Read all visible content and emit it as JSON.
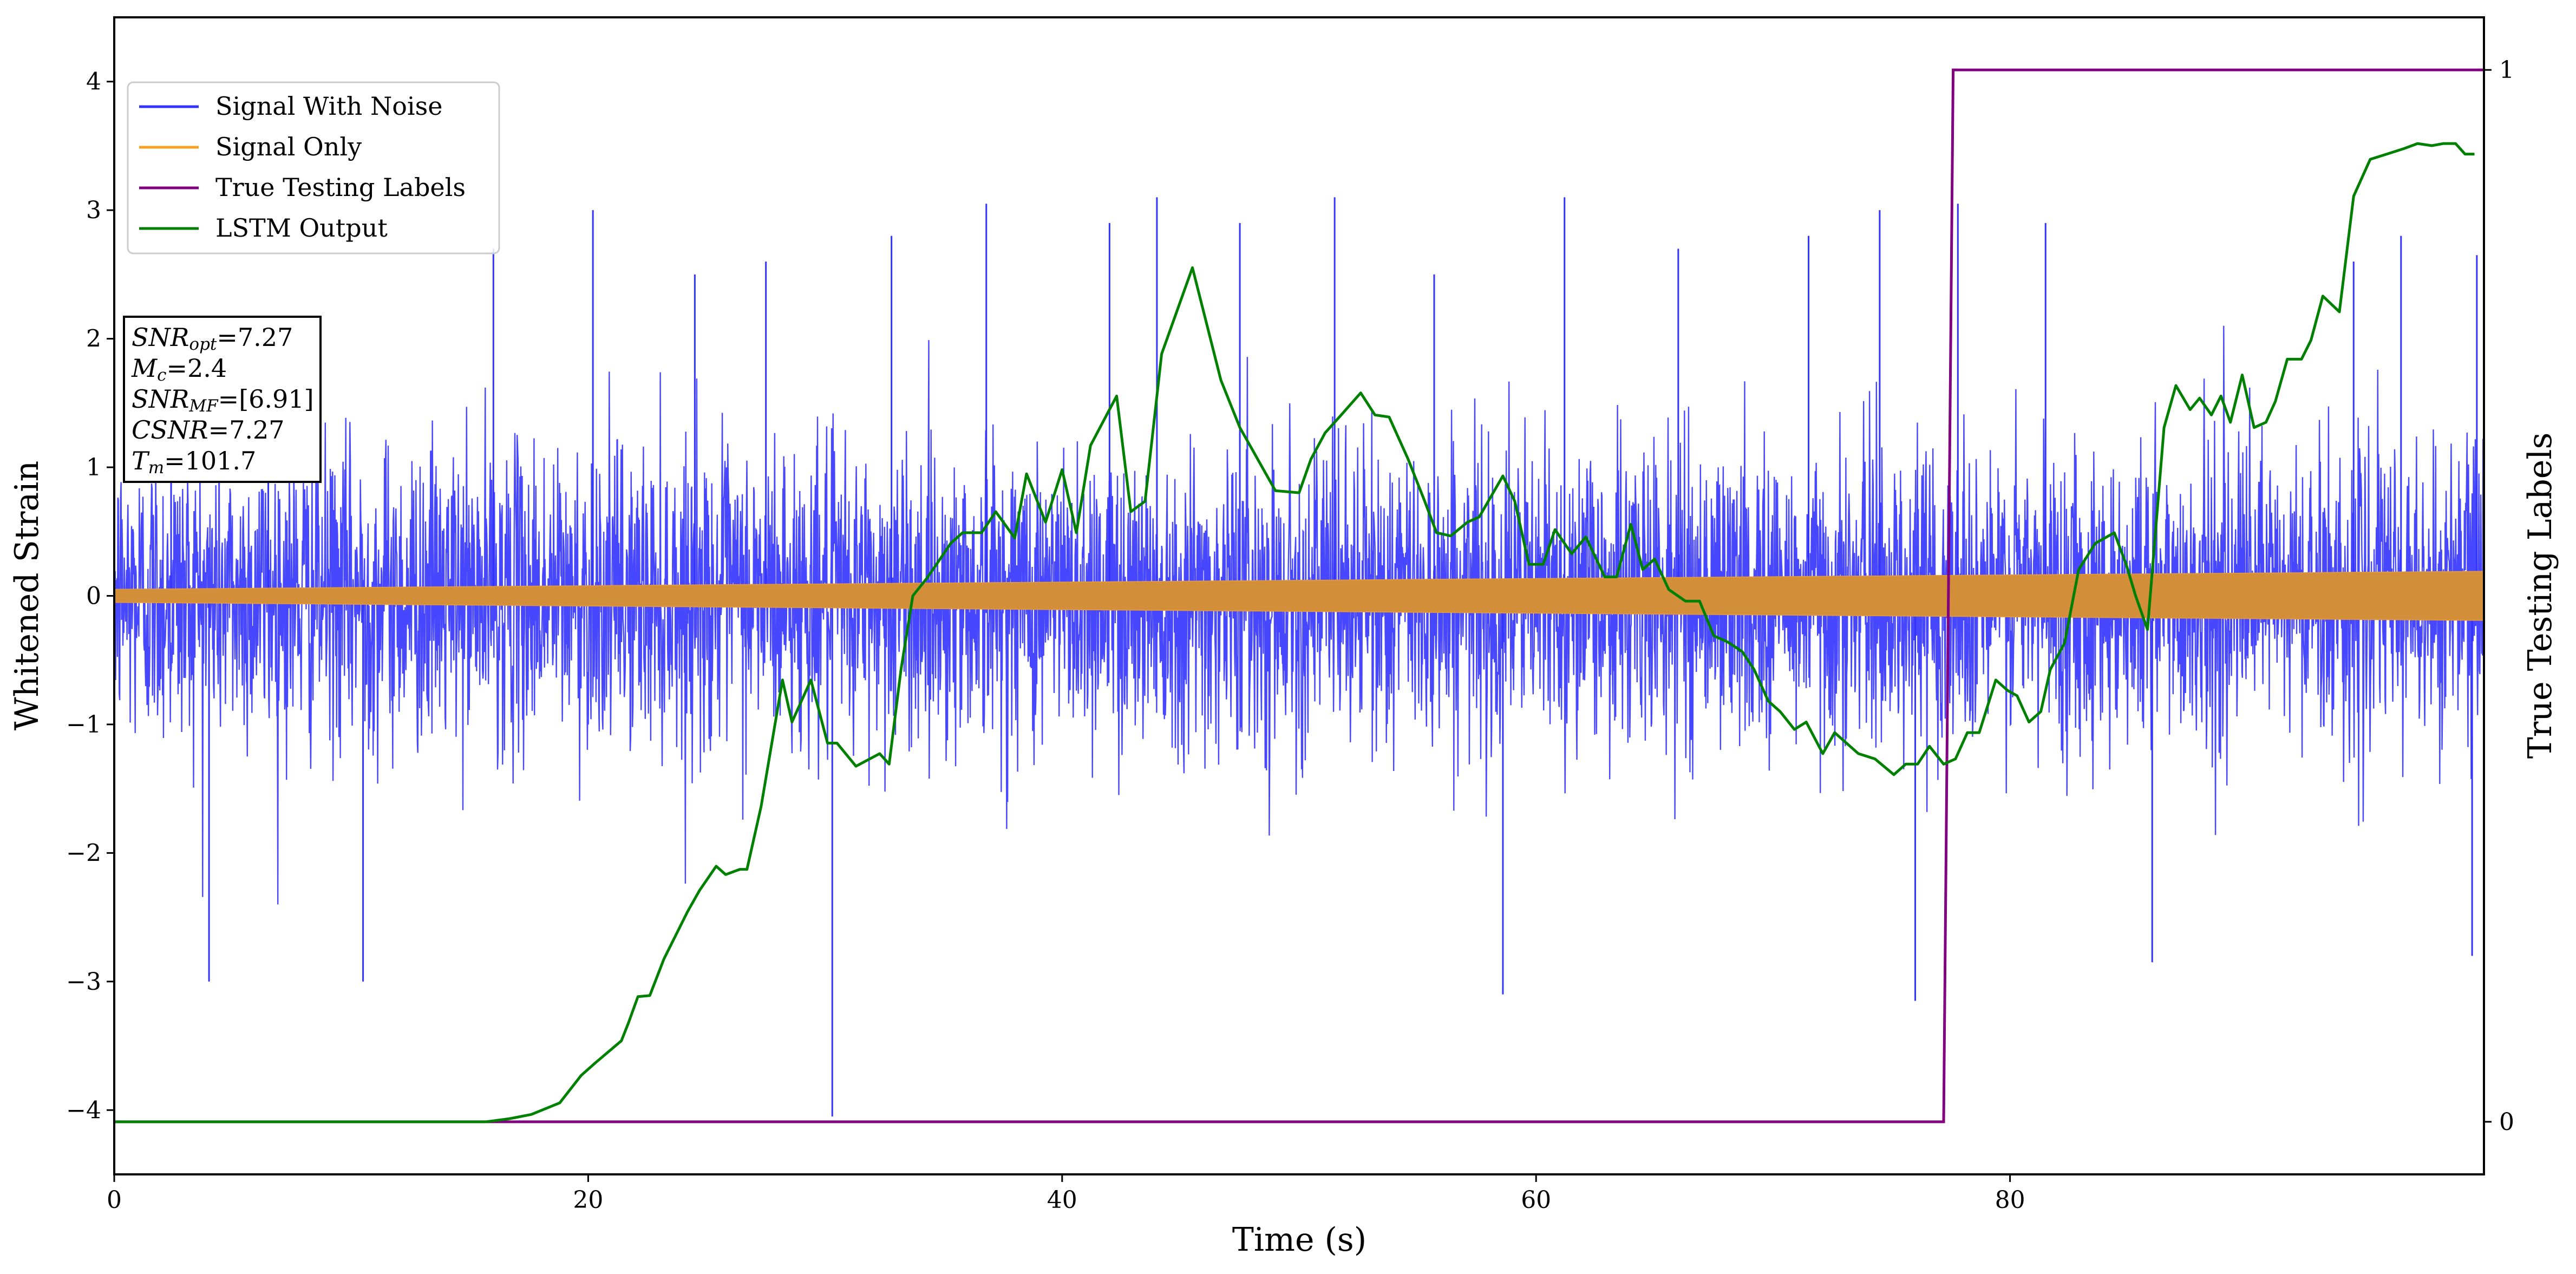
{
  "chart_data": {
    "type": "line",
    "xlabel": "Time (s)",
    "ylabel": "Whitened Strain",
    "y2label": "True Testing Labels",
    "xlim": [
      0,
      100
    ],
    "ylim": [
      -4.5,
      4.5
    ],
    "y2lim": [
      -0.05,
      1.05
    ],
    "x_ticks": [
      "0",
      "20",
      "40",
      "60",
      "80"
    ],
    "x_tick_values": [
      0,
      20,
      40,
      60,
      80
    ],
    "y_ticks": [
      "−4",
      "−3",
      "−2",
      "−1",
      "0",
      "1",
      "2",
      "3",
      "4"
    ],
    "y_tick_values": [
      -4,
      -3,
      -2,
      -1,
      0,
      1,
      2,
      3,
      4
    ],
    "y2_ticks": [
      "0",
      "1"
    ],
    "y2_tick_values": [
      0,
      1
    ],
    "legend_position": "upper-left",
    "legend": [
      "Signal With Noise",
      "Signal Only",
      "True Testing Labels",
      "LSTM Output"
    ],
    "series": [
      {
        "name": "Signal With Noise",
        "color": "#3333ff",
        "axis": "left",
        "description_values": "dense noise band, typical envelope about -1.4 to 1.4, peaks from -4.05 to 3.15",
        "spikes": [
          [
            2.4,
            1.55
          ],
          [
            4.0,
            -3.0
          ],
          [
            6.5,
            1.9
          ],
          [
            10.5,
            -3.0
          ],
          [
            16.0,
            2.7
          ],
          [
            20.2,
            3.0
          ],
          [
            24.5,
            2.5
          ],
          [
            27.5,
            2.6
          ],
          [
            30.3,
            -4.05
          ],
          [
            32.8,
            2.8
          ],
          [
            36.8,
            3.05
          ],
          [
            42.0,
            2.9
          ],
          [
            44.0,
            3.1
          ],
          [
            47.5,
            2.9
          ],
          [
            51.5,
            3.1
          ],
          [
            55.7,
            2.5
          ],
          [
            58.6,
            -3.1
          ],
          [
            61.2,
            3.1
          ],
          [
            66.0,
            2.7
          ],
          [
            71.5,
            2.8
          ],
          [
            74.5,
            3.0
          ],
          [
            76.0,
            -3.15
          ],
          [
            77.8,
            3.05
          ],
          [
            81.5,
            2.9
          ],
          [
            86.0,
            -2.85
          ],
          [
            94.5,
            2.6
          ],
          [
            96.5,
            2.8
          ],
          [
            99.5,
            -2.8
          ],
          [
            99.7,
            2.65
          ]
        ]
      },
      {
        "name": "Signal Only",
        "color": "#f5a020",
        "axis": "left",
        "description_values": "chirp with amplitude growing linearly",
        "amplitude_start": 0.05,
        "amplitude_end": 0.19
      },
      {
        "name": "True Testing Labels",
        "color": "#800080",
        "axis": "right",
        "x": [
          0,
          77.2,
          77.6,
          100
        ],
        "y": [
          0,
          0,
          1,
          1
        ]
      },
      {
        "name": "LSTM Output",
        "color": "#008000",
        "axis": "right",
        "x": [
          0,
          15.7,
          16.7,
          17.6,
          18.8,
          19.7,
          20.3,
          21.4,
          21.7,
          22.1,
          22.6,
          23.2,
          24.2,
          24.7,
          25.4,
          25.8,
          26.4,
          26.7,
          27.3,
          28.2,
          28.6,
          29.4,
          30.1,
          30.5,
          31.3,
          32.3,
          32.7,
          33.2,
          33.7,
          34.3,
          34.7,
          35.3,
          35.8,
          36.6,
          37.2,
          38.0,
          38.5,
          39.3,
          40.0,
          40.6,
          41.2,
          42.3,
          42.9,
          43.5,
          44.2,
          45.5,
          46.7,
          47.5,
          48.0,
          49.0,
          50.0,
          50.5,
          51.1,
          51.7,
          52.6,
          53.2,
          53.8,
          54.6,
          55.3,
          55.8,
          56.4,
          57.1,
          57.6,
          58.6,
          59.1,
          59.7,
          60.3,
          60.8,
          61.5,
          62.1,
          62.9,
          63.4,
          64.0,
          64.5,
          65.0,
          65.6,
          66.3,
          66.9,
          67.5,
          68.1,
          68.7,
          69.2,
          69.8,
          70.3,
          70.9,
          71.4,
          72.1,
          72.6,
          73.1,
          73.6,
          74.3,
          75.1,
          75.6,
          76.1,
          76.6,
          77.2,
          77.7,
          78.2,
          78.7,
          79.4,
          79.9,
          80.3,
          80.8,
          81.3,
          81.7,
          82.3,
          82.9,
          83.6,
          84.4,
          84.9,
          85.3,
          85.8,
          86.5,
          87.0,
          87.6,
          88.0,
          88.5,
          88.9,
          89.3,
          89.8,
          90.3,
          90.8,
          91.2,
          91.7,
          92.3,
          92.7,
          93.2,
          93.9,
          94.5,
          95.2,
          95.9,
          96.6,
          97.2,
          97.8,
          98.3,
          98.8,
          99.2,
          99.6
        ],
        "y": [
          0,
          0,
          0.003,
          0.007,
          0.018,
          0.044,
          0.056,
          0.077,
          0.094,
          0.119,
          0.12,
          0.155,
          0.2,
          0.22,
          0.243,
          0.235,
          0.24,
          0.24,
          0.3,
          0.42,
          0.38,
          0.42,
          0.36,
          0.36,
          0.338,
          0.35,
          0.34,
          0.43,
          0.5,
          0.517,
          0.53,
          0.55,
          0.56,
          0.56,
          0.58,
          0.555,
          0.616,
          0.57,
          0.62,
          0.56,
          0.643,
          0.69,
          0.58,
          0.59,
          0.73,
          0.812,
          0.705,
          0.66,
          0.64,
          0.6,
          0.598,
          0.63,
          0.655,
          0.67,
          0.693,
          0.672,
          0.67,
          0.63,
          0.59,
          0.56,
          0.557,
          0.57,
          0.575,
          0.614,
          0.59,
          0.53,
          0.53,
          0.563,
          0.54,
          0.556,
          0.518,
          0.518,
          0.568,
          0.525,
          0.535,
          0.506,
          0.495,
          0.495,
          0.462,
          0.456,
          0.447,
          0.43,
          0.4,
          0.39,
          0.373,
          0.38,
          0.35,
          0.37,
          0.36,
          0.35,
          0.345,
          0.33,
          0.34,
          0.34,
          0.357,
          0.34,
          0.345,
          0.37,
          0.37,
          0.42,
          0.41,
          0.405,
          0.38,
          0.39,
          0.43,
          0.455,
          0.525,
          0.55,
          0.56,
          0.53,
          0.5,
          0.468,
          0.66,
          0.7,
          0.677,
          0.688,
          0.672,
          0.69,
          0.665,
          0.71,
          0.66,
          0.665,
          0.685,
          0.725,
          0.725,
          0.743,
          0.785,
          0.77,
          0.88,
          0.915,
          0.92,
          0.925,
          0.93,
          0.928,
          0.93,
          0.93,
          0.92,
          0.92
        ]
      }
    ]
  },
  "info_box": {
    "snr_opt_value": "=7.27",
    "mc_value": "=2.4",
    "snr_mf_value": "=[6.91]",
    "csnr_value": "=7.27",
    "tm_value": "=101.7"
  }
}
